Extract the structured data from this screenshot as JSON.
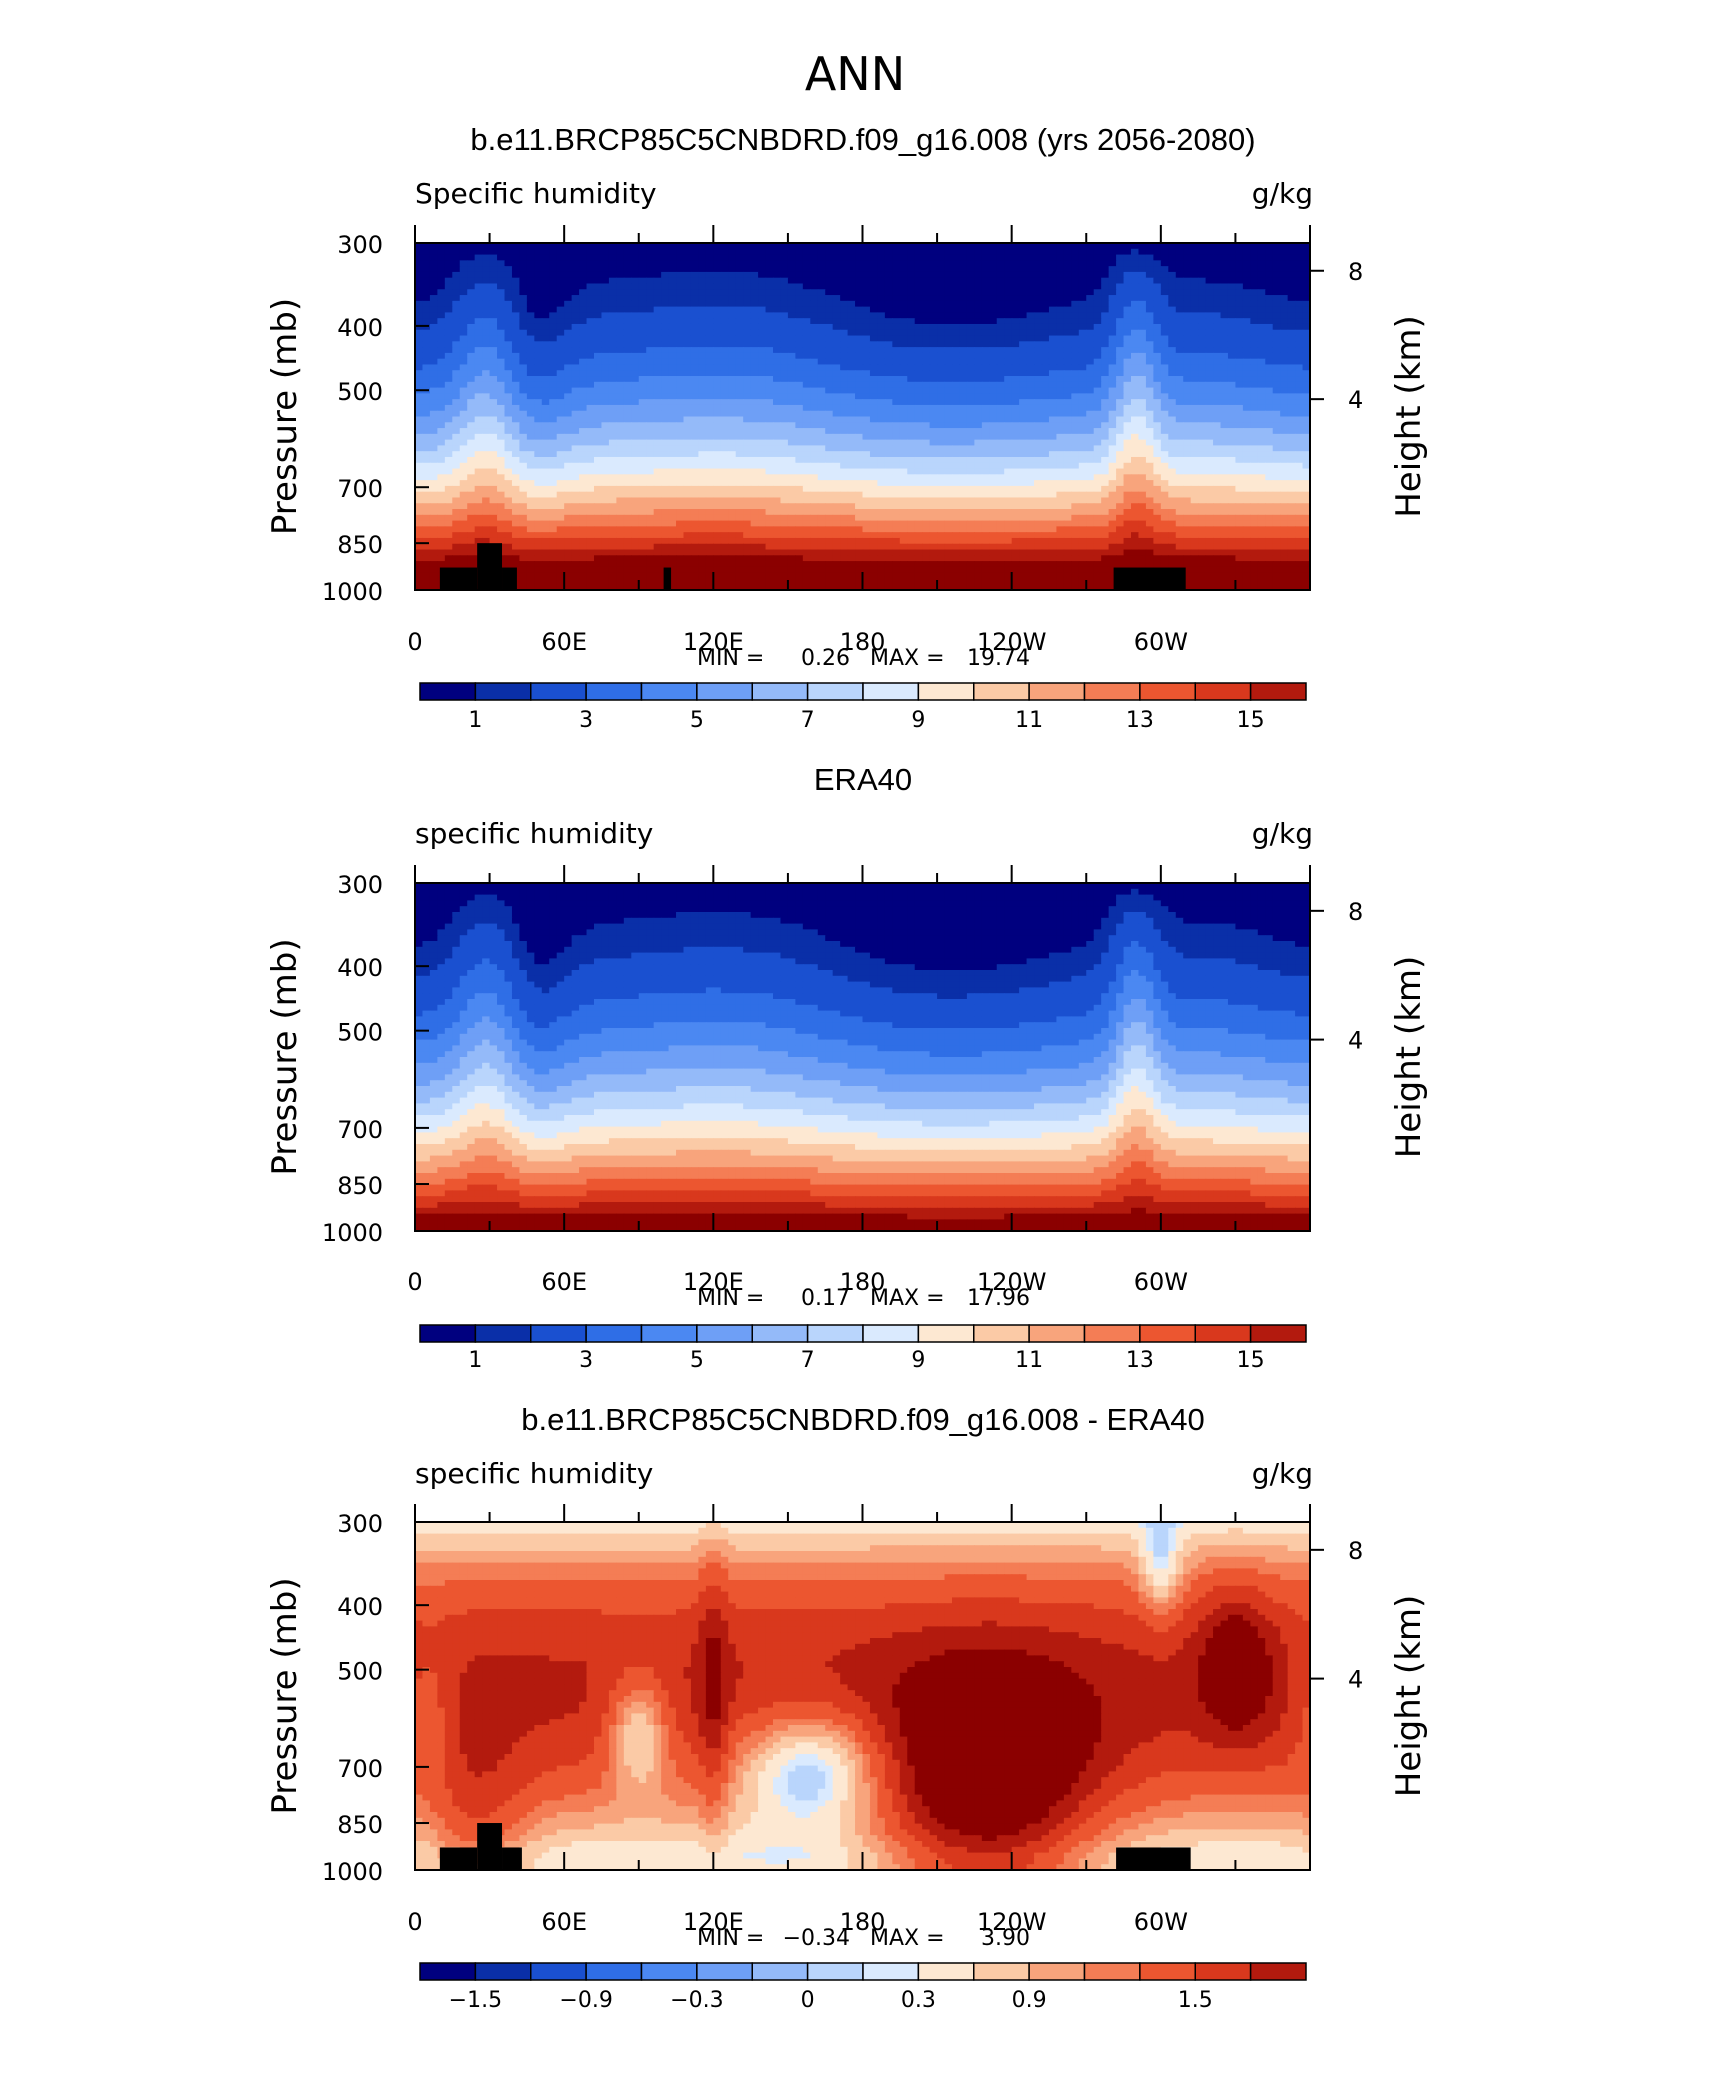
{
  "figure_title": "ANN",
  "palettes": {
    "abs": [
      "#00007f",
      "#0a2fa8",
      "#1a50d0",
      "#2f6ee6",
      "#4b88f2",
      "#6e9ff6",
      "#94baf9",
      "#b9d5fc",
      "#daeafe",
      "#fde8d2",
      "#fbcaa6",
      "#f8a47c",
      "#f47d55",
      "#ec5630",
      "#d9381d",
      "#b31a0e",
      "#8b0000"
    ],
    "diff": [
      "#00007f",
      "#0a2fa8",
      "#1a50d0",
      "#2f6ee6",
      "#4b88f2",
      "#6e9ff6",
      "#94baf9",
      "#b9d5fc",
      "#daeafe",
      "#fde8d2",
      "#fbcaa6",
      "#f8a47c",
      "#f47d55",
      "#ec5630",
      "#d9381d",
      "#b31a0e",
      "#8b0000"
    ]
  },
  "x_ticks": [
    "0",
    "60E",
    "120E",
    "180",
    "120W",
    "60W"
  ],
  "chart_data": [
    {
      "type": "heatmap",
      "title": "b.e11.BRCP85C5CNBDRD.f09_g16.008 (yrs 2056-2080)",
      "left_label": "Specific humidity",
      "right_label": "g/kg",
      "ylabel": "Pressure (mb)",
      "ylabel_right": "Height (km)",
      "y_ticks": [
        "300",
        "400",
        "500",
        "700",
        "850",
        "1000"
      ],
      "y_ticks_right": [
        "8",
        "4"
      ],
      "ylim": [
        1000,
        300
      ],
      "xlim": [
        0,
        360
      ],
      "min_label": "MIN =",
      "min_value": "0.26",
      "max_label": "MAX =",
      "max_value": "19.74",
      "levels": [
        0.5,
        1,
        2,
        3,
        4,
        5,
        6,
        7,
        8,
        9,
        10,
        11,
        12,
        13,
        14,
        15
      ],
      "colorbar_labels": [
        "1",
        "3",
        "5",
        "7",
        "9",
        "11",
        "13",
        "15"
      ],
      "palette": "abs",
      "topo_blocks": [
        [
          10,
          25,
          1000,
          925
        ],
        [
          25,
          35,
          1000,
          850
        ],
        [
          35,
          41,
          1000,
          925
        ],
        [
          100,
          103,
          1000,
          925
        ],
        [
          281,
          310,
          1000,
          925
        ]
      ]
    },
    {
      "type": "heatmap",
      "title": "ERA40",
      "left_label": "specific humidity",
      "right_label": "g/kg",
      "ylabel": "Pressure (mb)",
      "ylabel_right": "Height (km)",
      "y_ticks": [
        "300",
        "400",
        "500",
        "700",
        "850",
        "1000"
      ],
      "y_ticks_right": [
        "8",
        "4"
      ],
      "ylim": [
        1000,
        300
      ],
      "xlim": [
        0,
        360
      ],
      "min_label": "MIN =",
      "min_value": "0.17",
      "max_label": "MAX =",
      "max_value": "17.96",
      "levels": [
        0.5,
        1,
        2,
        3,
        4,
        5,
        6,
        7,
        8,
        9,
        10,
        11,
        12,
        13,
        14,
        15
      ],
      "colorbar_labels": [
        "1",
        "3",
        "5",
        "7",
        "9",
        "11",
        "13",
        "15"
      ],
      "palette": "abs",
      "topo_blocks": []
    },
    {
      "type": "heatmap",
      "title": "b.e11.BRCP85C5CNBDRD.f09_g16.008 - ERA40",
      "left_label": "specific humidity",
      "right_label": "g/kg",
      "ylabel": "Pressure (mb)",
      "ylabel_right": "Height (km)",
      "y_ticks": [
        "300",
        "400",
        "500",
        "700",
        "850",
        "1000"
      ],
      "y_ticks_right": [
        "8",
        "4"
      ],
      "ylim": [
        1000,
        300
      ],
      "xlim": [
        0,
        360
      ],
      "min_label": "MIN =",
      "min_value": "−0.34",
      "max_label": "MAX =",
      "max_value": "3.90",
      "levels": [
        -1.8,
        -1.5,
        -1.2,
        -0.9,
        -0.6,
        -0.3,
        -0.1,
        0,
        0.1,
        0.3,
        0.5,
        0.7,
        0.9,
        1.2,
        1.5,
        1.8
      ],
      "colorbar_labels": [
        "−1.5",
        "−0.9",
        "−0.3",
        "0",
        "0.3",
        "0.9",
        "1.5"
      ],
      "colorbar_label_bounds": [
        1,
        3,
        5,
        7,
        9,
        11,
        14
      ],
      "palette": "diff",
      "topo_blocks": [
        [
          10,
          25,
          1000,
          925
        ],
        [
          25,
          35,
          1000,
          850
        ],
        [
          35,
          43,
          1000,
          925
        ],
        [
          282,
          312,
          1000,
          925
        ]
      ]
    }
  ]
}
